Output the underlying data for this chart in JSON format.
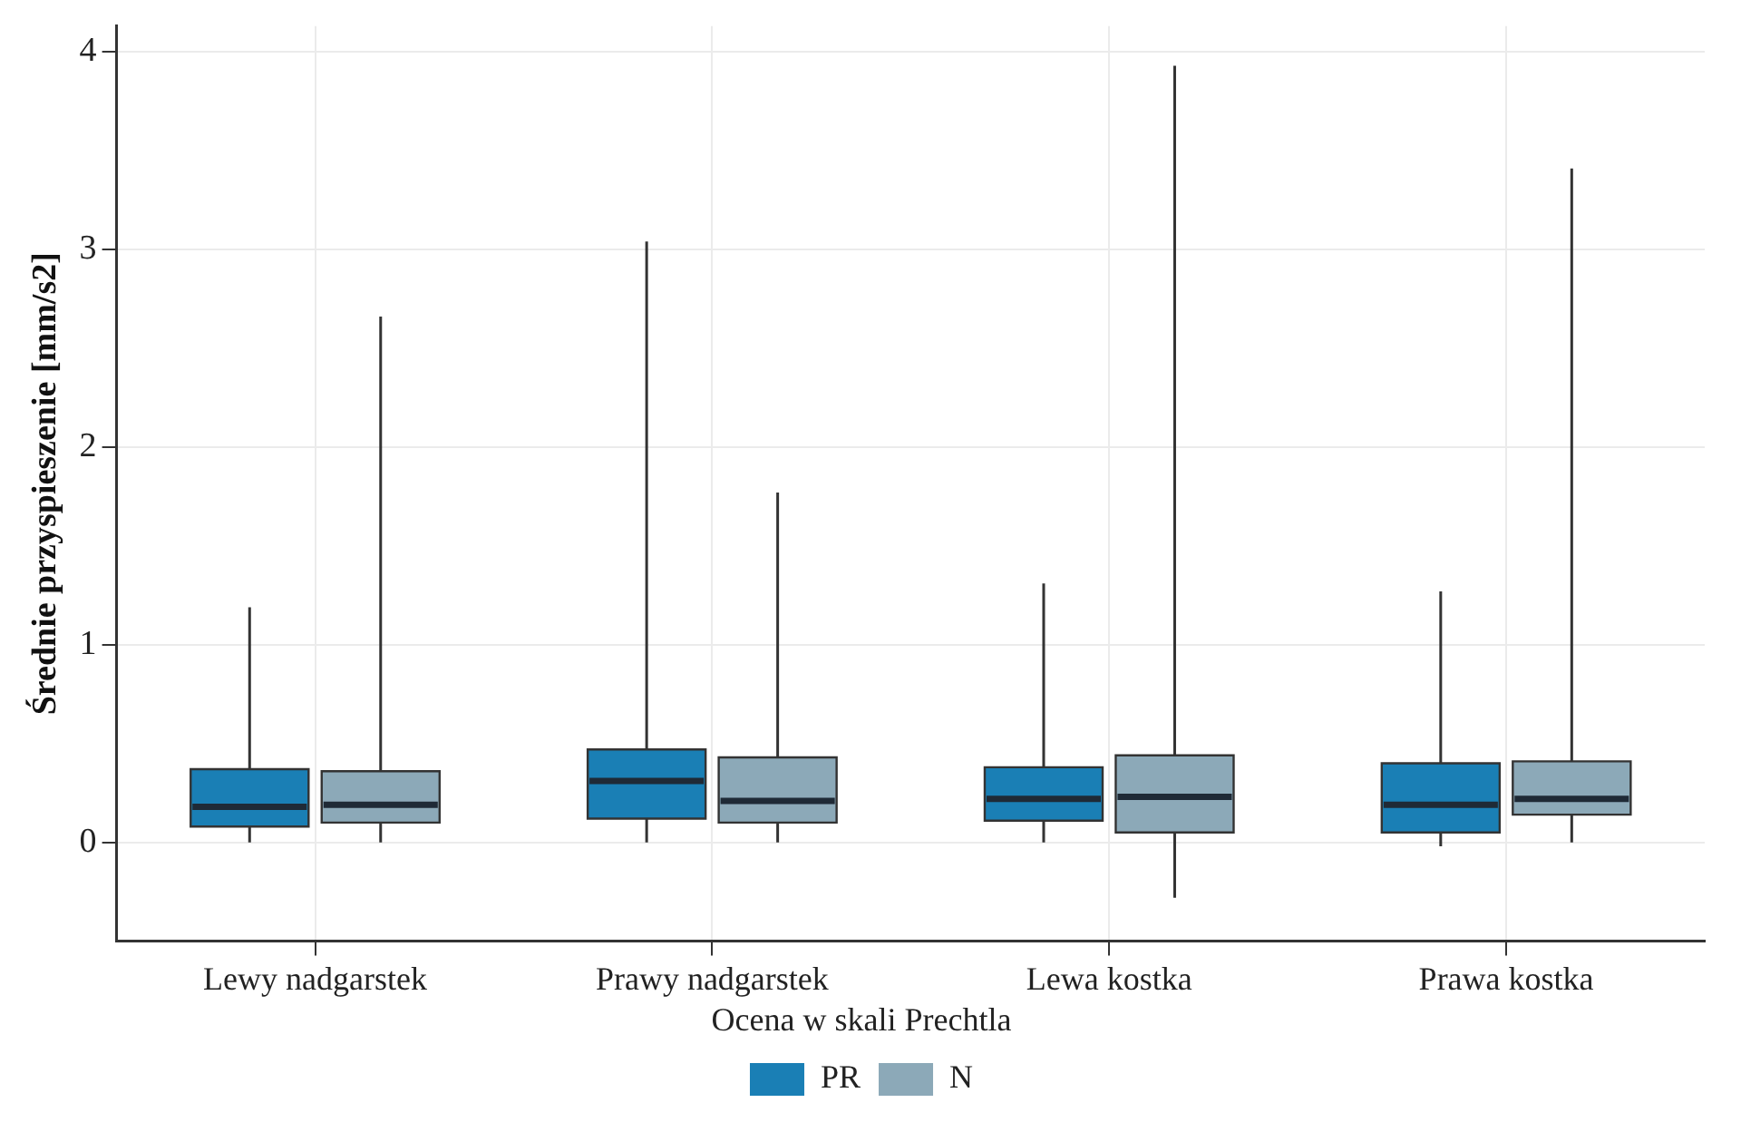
{
  "chart_data": {
    "type": "box",
    "ylabel": "Średnie przyspieszenie [mm/s2]",
    "legend_title": "Ocena w skali Prechtla",
    "legend": "bottom",
    "grid": true,
    "categories": [
      "Lewy nadgarstek",
      "Prawy nadgarstek",
      "Lewa kostka",
      "Prawa kostka"
    ],
    "ylim": [
      -0.5,
      4.13
    ],
    "yticks": [
      0,
      1,
      2,
      3,
      4
    ],
    "series": [
      {
        "name": "PR",
        "color": "#1a7fb5",
        "boxes": [
          {
            "low": 0,
            "q1": 0.08,
            "median": 0.18,
            "q3": 0.37,
            "high": 1.19
          },
          {
            "low": 0,
            "q1": 0.12,
            "median": 0.31,
            "q3": 0.47,
            "high": 3.04
          },
          {
            "low": 0,
            "q1": 0.11,
            "median": 0.22,
            "q3": 0.38,
            "high": 1.31
          },
          {
            "low": -0.02,
            "q1": 0.05,
            "median": 0.19,
            "q3": 0.4,
            "high": 1.27
          }
        ]
      },
      {
        "name": "N",
        "color": "#8ca9b8",
        "boxes": [
          {
            "low": 0,
            "q1": 0.1,
            "median": 0.19,
            "q3": 0.36,
            "high": 2.66
          },
          {
            "low": 0,
            "q1": 0.1,
            "median": 0.21,
            "q3": 0.43,
            "high": 1.77
          },
          {
            "low": -0.28,
            "q1": 0.05,
            "median": 0.23,
            "q3": 0.44,
            "high": 3.93
          },
          {
            "low": 0,
            "q1": 0.14,
            "median": 0.22,
            "q3": 0.41,
            "high": 3.41
          }
        ]
      }
    ]
  }
}
